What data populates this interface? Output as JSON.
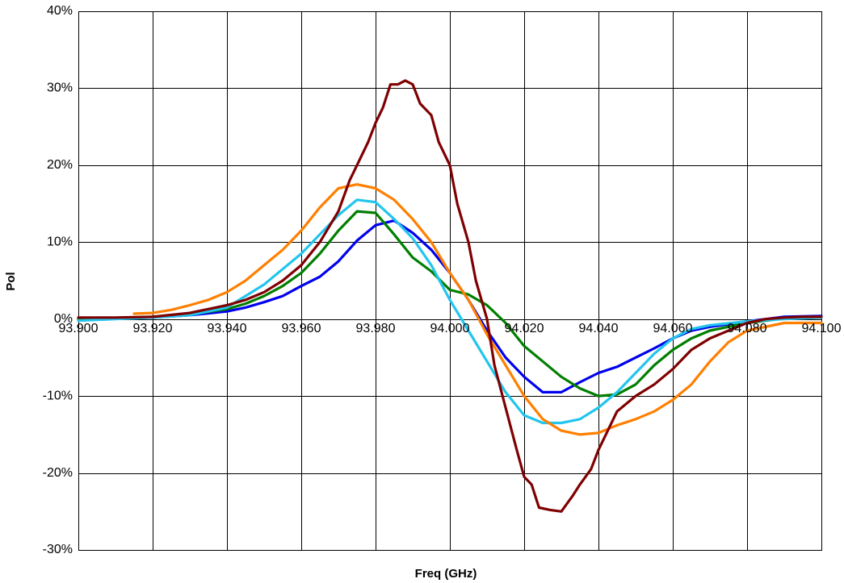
{
  "chart_data": {
    "type": "line",
    "title": "",
    "xlabel": "Freq (GHz)",
    "ylabel": "Pol",
    "xlim": [
      93.9,
      94.1
    ],
    "ylim": [
      -30,
      40
    ],
    "x_ticks": [
      "93.900",
      "93.920",
      "93.940",
      "93.960",
      "93.980",
      "94.000",
      "94.020",
      "94.040",
      "94.060",
      "94.080",
      "94.100"
    ],
    "y_ticks": [
      "-30%",
      "-20%",
      "-10%",
      "0%",
      "10%",
      "20%",
      "30%",
      "40%"
    ],
    "grid": true,
    "legend": "none",
    "series": [
      {
        "color": "#0000ee",
        "points": [
          [
            93.9,
            0.0
          ],
          [
            93.91,
            0.1
          ],
          [
            93.92,
            0.2
          ],
          [
            93.93,
            0.5
          ],
          [
            93.94,
            1.0
          ],
          [
            93.945,
            1.5
          ],
          [
            93.95,
            2.2
          ],
          [
            93.955,
            3.0
          ],
          [
            93.96,
            4.3
          ],
          [
            93.965,
            5.5
          ],
          [
            93.97,
            7.5
          ],
          [
            93.975,
            10.2
          ],
          [
            93.98,
            12.2
          ],
          [
            93.985,
            12.8
          ],
          [
            93.99,
            11.2
          ],
          [
            93.995,
            9.0
          ],
          [
            94.0,
            6.0
          ],
          [
            94.005,
            2.5
          ],
          [
            94.01,
            -1.5
          ],
          [
            94.015,
            -5.0
          ],
          [
            94.02,
            -7.5
          ],
          [
            94.025,
            -9.5
          ],
          [
            94.03,
            -9.5
          ],
          [
            94.035,
            -8.2
          ],
          [
            94.04,
            -7.0
          ],
          [
            94.045,
            -6.2
          ],
          [
            94.05,
            -5.0
          ],
          [
            94.055,
            -3.8
          ],
          [
            94.06,
            -2.5
          ],
          [
            94.065,
            -1.5
          ],
          [
            94.07,
            -1.0
          ],
          [
            94.08,
            -0.3
          ],
          [
            94.09,
            0.3
          ],
          [
            94.1,
            0.4
          ]
        ]
      },
      {
        "color": "#007f00",
        "points": [
          [
            93.9,
            0.0
          ],
          [
            93.91,
            0.1
          ],
          [
            93.92,
            0.3
          ],
          [
            93.93,
            0.6
          ],
          [
            93.94,
            1.3
          ],
          [
            93.945,
            2.0
          ],
          [
            93.95,
            3.0
          ],
          [
            93.955,
            4.3
          ],
          [
            93.96,
            6.0
          ],
          [
            93.965,
            8.5
          ],
          [
            93.97,
            11.5
          ],
          [
            93.975,
            14.0
          ],
          [
            93.98,
            13.8
          ],
          [
            93.985,
            11.0
          ],
          [
            93.99,
            8.0
          ],
          [
            93.995,
            6.2
          ],
          [
            94.0,
            3.8
          ],
          [
            94.005,
            3.2
          ],
          [
            94.01,
            1.8
          ],
          [
            94.015,
            -0.5
          ],
          [
            94.02,
            -3.5
          ],
          [
            94.025,
            -5.5
          ],
          [
            94.03,
            -7.5
          ],
          [
            94.035,
            -9.0
          ],
          [
            94.04,
            -10.0
          ],
          [
            94.045,
            -9.8
          ],
          [
            94.05,
            -8.5
          ],
          [
            94.055,
            -6.0
          ],
          [
            94.06,
            -4.0
          ],
          [
            94.065,
            -2.5
          ],
          [
            94.07,
            -1.5
          ],
          [
            94.08,
            -0.5
          ],
          [
            94.09,
            0.1
          ],
          [
            94.1,
            0.2
          ]
        ]
      },
      {
        "color": "#22c5ee",
        "points": [
          [
            93.9,
            -0.2
          ],
          [
            93.91,
            0.0
          ],
          [
            93.92,
            0.2
          ],
          [
            93.93,
            0.5
          ],
          [
            93.94,
            1.5
          ],
          [
            93.945,
            3.0
          ],
          [
            93.95,
            4.5
          ],
          [
            93.955,
            6.5
          ],
          [
            93.96,
            8.5
          ],
          [
            93.965,
            11.0
          ],
          [
            93.97,
            13.5
          ],
          [
            93.975,
            15.5
          ],
          [
            93.98,
            15.2
          ],
          [
            93.985,
            13.0
          ],
          [
            93.99,
            10.5
          ],
          [
            93.995,
            7.0
          ],
          [
            94.0,
            2.5
          ],
          [
            94.005,
            -1.5
          ],
          [
            94.01,
            -5.5
          ],
          [
            94.015,
            -9.5
          ],
          [
            94.02,
            -12.5
          ],
          [
            94.025,
            -13.5
          ],
          [
            94.03,
            -13.5
          ],
          [
            94.035,
            -13.0
          ],
          [
            94.04,
            -11.5
          ],
          [
            94.045,
            -9.5
          ],
          [
            94.05,
            -7.0
          ],
          [
            94.055,
            -4.5
          ],
          [
            94.06,
            -2.5
          ],
          [
            94.065,
            -1.3
          ],
          [
            94.07,
            -0.8
          ],
          [
            94.08,
            -0.3
          ],
          [
            94.09,
            0.0
          ],
          [
            94.1,
            0.2
          ]
        ]
      },
      {
        "color": "#ff7f00",
        "points": [
          [
            93.915,
            0.7
          ],
          [
            93.92,
            0.8
          ],
          [
            93.925,
            1.2
          ],
          [
            93.93,
            1.8
          ],
          [
            93.935,
            2.5
          ],
          [
            93.94,
            3.5
          ],
          [
            93.945,
            5.0
          ],
          [
            93.95,
            7.0
          ],
          [
            93.955,
            9.0
          ],
          [
            93.96,
            11.5
          ],
          [
            93.965,
            14.5
          ],
          [
            93.97,
            17.0
          ],
          [
            93.975,
            17.5
          ],
          [
            93.98,
            17.0
          ],
          [
            93.985,
            15.5
          ],
          [
            93.99,
            13.0
          ],
          [
            93.995,
            10.0
          ],
          [
            94.0,
            6.0
          ],
          [
            94.005,
            2.5
          ],
          [
            94.01,
            -2.0
          ],
          [
            94.015,
            -6.0
          ],
          [
            94.02,
            -10.0
          ],
          [
            94.025,
            -13.0
          ],
          [
            94.03,
            -14.5
          ],
          [
            94.035,
            -15.0
          ],
          [
            94.04,
            -14.8
          ],
          [
            94.045,
            -13.8
          ],
          [
            94.05,
            -13.0
          ],
          [
            94.055,
            -12.0
          ],
          [
            94.06,
            -10.5
          ],
          [
            94.065,
            -8.5
          ],
          [
            94.07,
            -5.5
          ],
          [
            94.075,
            -3.0
          ],
          [
            94.08,
            -1.5
          ],
          [
            94.09,
            -0.5
          ],
          [
            94.1,
            -0.5
          ]
        ]
      },
      {
        "color": "#7f0000",
        "points": [
          [
            93.9,
            0.2
          ],
          [
            93.91,
            0.2
          ],
          [
            93.92,
            0.3
          ],
          [
            93.93,
            0.8
          ],
          [
            93.94,
            1.8
          ],
          [
            93.945,
            2.5
          ],
          [
            93.95,
            3.5
          ],
          [
            93.955,
            5.0
          ],
          [
            93.96,
            7.0
          ],
          [
            93.965,
            10.0
          ],
          [
            93.97,
            14.0
          ],
          [
            93.973,
            18.0
          ],
          [
            93.975,
            20.0
          ],
          [
            93.978,
            23.0
          ],
          [
            93.98,
            25.5
          ],
          [
            93.982,
            27.5
          ],
          [
            93.984,
            30.5
          ],
          [
            93.986,
            30.5
          ],
          [
            93.988,
            31.0
          ],
          [
            93.99,
            30.5
          ],
          [
            93.992,
            28.0
          ],
          [
            93.995,
            26.5
          ],
          [
            93.997,
            23.0
          ],
          [
            94.0,
            20.0
          ],
          [
            94.002,
            15.0
          ],
          [
            94.005,
            10.0
          ],
          [
            94.007,
            5.0
          ],
          [
            94.01,
            0.0
          ],
          [
            94.012,
            -6.0
          ],
          [
            94.015,
            -11.5
          ],
          [
            94.018,
            -17.0
          ],
          [
            94.02,
            -20.5
          ],
          [
            94.022,
            -21.5
          ],
          [
            94.024,
            -24.5
          ],
          [
            94.027,
            -24.8
          ],
          [
            94.03,
            -25.0
          ],
          [
            94.033,
            -23.0
          ],
          [
            94.035,
            -21.5
          ],
          [
            94.038,
            -19.5
          ],
          [
            94.04,
            -17.0
          ],
          [
            94.043,
            -14.0
          ],
          [
            94.045,
            -12.0
          ],
          [
            94.05,
            -10.0
          ],
          [
            94.055,
            -8.5
          ],
          [
            94.06,
            -6.5
          ],
          [
            94.065,
            -4.0
          ],
          [
            94.07,
            -2.5
          ],
          [
            94.075,
            -1.5
          ],
          [
            94.08,
            -0.5
          ],
          [
            94.085,
            0.0
          ],
          [
            94.09,
            0.2
          ],
          [
            94.095,
            0.3
          ],
          [
            94.1,
            0.3
          ]
        ]
      }
    ]
  }
}
